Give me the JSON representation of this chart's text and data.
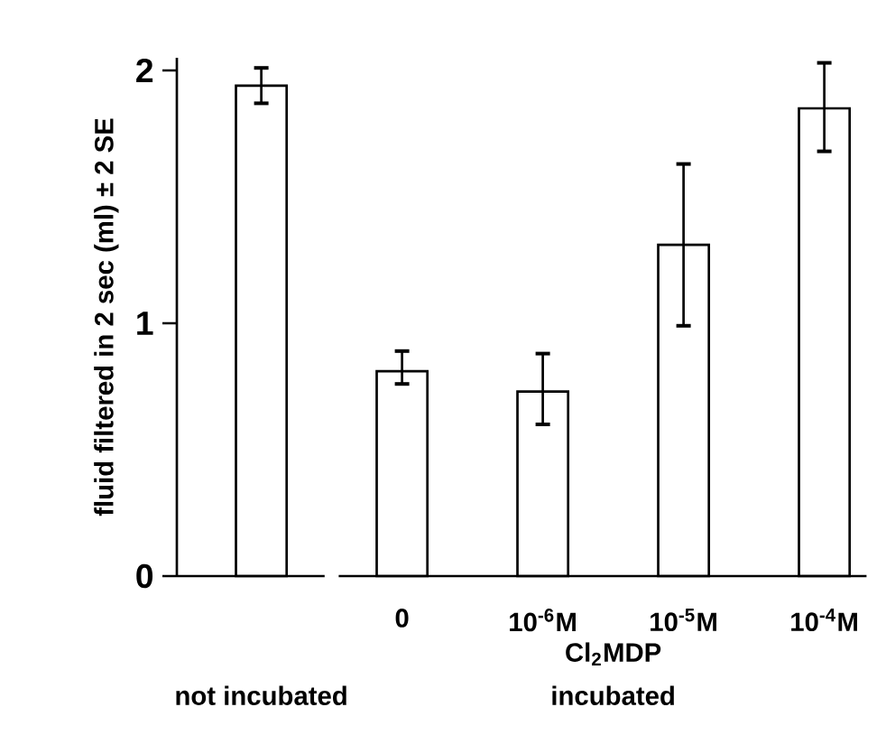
{
  "chart_data": {
    "type": "bar",
    "ylabel": "fluid filtered in 2 sec (ml) ± 2 SE",
    "xlabel": "Cl$_{2}$MDP",
    "annotations": [
      "not incubated",
      "incubated"
    ],
    "categories": [
      null,
      "0",
      "10$^{-6}$M",
      "10$^{-5}$M",
      "10$^{-4}$M"
    ],
    "values": [
      1.94,
      0.81,
      0.73,
      1.31,
      1.85
    ],
    "errors": [
      [
        1.87,
        2.01
      ],
      [
        0.76,
        0.89
      ],
      [
        0.6,
        0.88
      ],
      [
        0.99,
        1.63
      ],
      [
        1.68,
        2.03
      ]
    ],
    "color": "#ffffff",
    "ylim": [
      0,
      2.05
    ],
    "yticks": [
      0,
      1,
      2
    ]
  }
}
